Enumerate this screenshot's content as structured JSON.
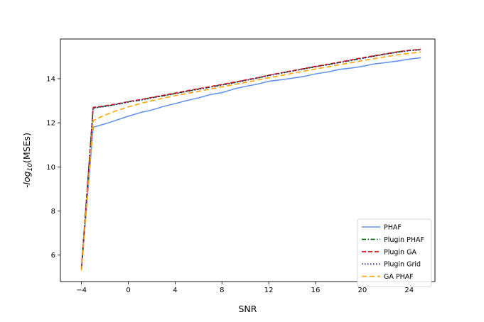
{
  "chart_data": {
    "type": "line",
    "xlabel": "SNR",
    "ylabel_prefix": "-log",
    "ylabel_sub": "10",
    "ylabel_suffix": "(MSEs)",
    "xlim": [
      -5.8,
      26.2
    ],
    "ylim": [
      4.8,
      15.8
    ],
    "xticks": [
      -4,
      0,
      4,
      8,
      12,
      16,
      20,
      24
    ],
    "xtick_labels": [
      "−4",
      "0",
      "4",
      "8",
      "12",
      "16",
      "20",
      "24"
    ],
    "yticks": [
      6,
      8,
      10,
      12,
      14
    ],
    "ytick_labels": [
      "6",
      "8",
      "10",
      "12",
      "14"
    ],
    "grid": false,
    "legend_position": "lower-right",
    "x": [
      -4,
      -3,
      -2,
      -1,
      0,
      1,
      2,
      3,
      4,
      5,
      6,
      7,
      8,
      9,
      10,
      11,
      12,
      13,
      14,
      15,
      16,
      17,
      18,
      19,
      20,
      21,
      22,
      23,
      24,
      25
    ],
    "series": [
      {
        "name": "PHAF",
        "color": "#6495ed",
        "dash": "solid",
        "values": [
          5.35,
          11.8,
          11.95,
          12.12,
          12.3,
          12.46,
          12.58,
          12.74,
          12.87,
          13.01,
          13.13,
          13.28,
          13.37,
          13.53,
          13.65,
          13.75,
          13.88,
          13.95,
          14.02,
          14.1,
          14.22,
          14.3,
          14.42,
          14.48,
          14.56,
          14.67,
          14.73,
          14.8,
          14.89,
          14.95
        ]
      },
      {
        "name": "Plugin PHAF",
        "color": "#006400",
        "dash": "dashdot",
        "values": [
          5.4,
          12.68,
          12.75,
          12.84,
          12.95,
          13.03,
          13.14,
          13.23,
          13.33,
          13.43,
          13.53,
          13.62,
          13.72,
          13.82,
          13.93,
          14.03,
          14.15,
          14.25,
          14.35,
          14.45,
          14.55,
          14.64,
          14.73,
          14.83,
          14.93,
          15.03,
          15.12,
          15.21,
          15.28,
          15.32
        ]
      },
      {
        "name": "Plugin GA",
        "color": "#e8141e",
        "dash": "dashed",
        "values": [
          5.42,
          12.7,
          12.77,
          12.86,
          12.96,
          13.05,
          13.15,
          13.25,
          13.35,
          13.45,
          13.55,
          13.64,
          13.74,
          13.84,
          13.94,
          14.04,
          14.16,
          14.26,
          14.36,
          14.46,
          14.56,
          14.65,
          14.75,
          14.85,
          14.95,
          15.04,
          15.13,
          15.22,
          15.29,
          15.33
        ]
      },
      {
        "name": "Plugin Grid",
        "color": "#1a237e",
        "dash": "dotted",
        "values": [
          5.38,
          12.66,
          12.74,
          12.83,
          12.94,
          13.02,
          13.13,
          13.22,
          13.32,
          13.42,
          13.52,
          13.61,
          13.71,
          13.81,
          13.92,
          14.02,
          14.14,
          14.24,
          14.34,
          14.44,
          14.54,
          14.63,
          14.72,
          14.82,
          14.92,
          15.02,
          15.11,
          15.2,
          15.27,
          15.31
        ]
      },
      {
        "name": "GA PHAF",
        "color": "#ffa500",
        "dash": "longdash",
        "values": [
          5.3,
          12.1,
          12.35,
          12.55,
          12.72,
          12.87,
          13.0,
          13.12,
          13.23,
          13.33,
          13.43,
          13.53,
          13.63,
          13.73,
          13.83,
          13.93,
          14.04,
          14.14,
          14.24,
          14.34,
          14.44,
          14.53,
          14.63,
          14.72,
          14.82,
          14.91,
          15.0,
          15.08,
          15.15,
          15.21
        ]
      }
    ]
  }
}
